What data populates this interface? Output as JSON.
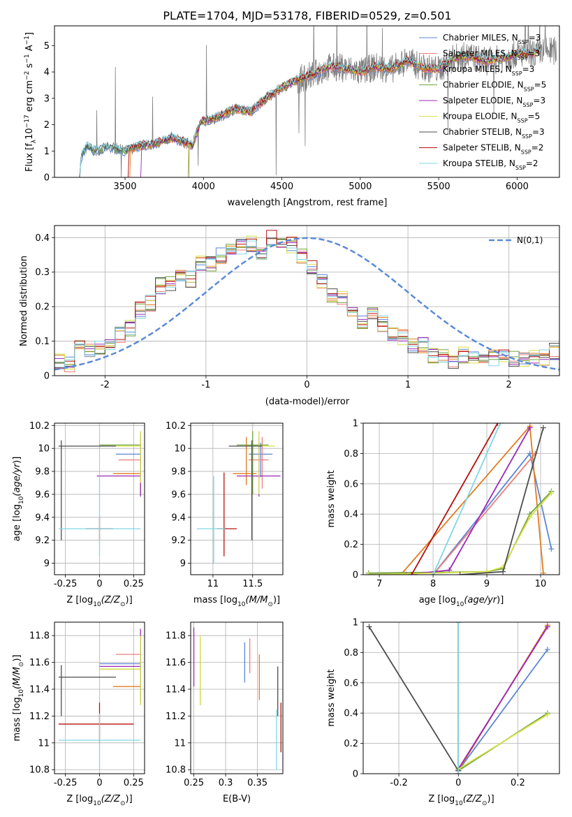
{
  "colors": {
    "Chabrier MILES": "#5b86d6",
    "Salpeter MILES": "#ee7d7d",
    "Kroupa MILES": "#e17b1f",
    "Chabrier ELODIE": "#6fa23a",
    "Salpeter ELODIE": "#9b28b6",
    "Kroupa ELODIE": "#d6e04a",
    "Chabrier STELIB": "#4d4d4d",
    "Salpeter STELIB": "#b3120e",
    "Kroupa STELIB": "#80d7e3",
    "gauss": "#5b8ad6"
  },
  "models": [
    {
      "lib": "Chabrier MILES",
      "nssp": "3"
    },
    {
      "lib": "Salpeter MILES",
      "nssp": "3"
    },
    {
      "lib": "Kroupa MILES",
      "nssp": "3"
    },
    {
      "lib": "Chabrier ELODIE",
      "nssp": "5"
    },
    {
      "lib": "Salpeter ELODIE",
      "nssp": "3"
    },
    {
      "lib": "Kroupa ELODIE",
      "nssp": "5"
    },
    {
      "lib": "Chabrier STELIB",
      "nssp": "3"
    },
    {
      "lib": "Salpeter STELIB",
      "nssp": "2"
    },
    {
      "lib": "Kroupa STELIB",
      "nssp": "2"
    }
  ],
  "chart_data": [
    {
      "id": "spectrum",
      "type": "line",
      "title": "PLATE=1704, MJD=53178, FIBERID=0529, z=0.501",
      "xlabel": "wavelength [Angstrom, rest frame]",
      "ylabel": "Flux [f_λ 10^-17 erg cm^-2 s^-1 A^-1]",
      "xlim": [
        3050,
        6270
      ],
      "ylim": [
        0,
        5.75
      ],
      "xticks": [
        3500,
        4000,
        4500,
        5000,
        5500,
        6000
      ],
      "yticks": [
        0,
        1,
        2,
        3,
        4,
        5
      ],
      "continuum": {
        "x": [
          3210,
          3220,
          3260,
          3300,
          3400,
          3500,
          3600,
          3700,
          3800,
          3870,
          3930,
          3980,
          4100,
          4200,
          4300,
          4400,
          4500,
          4600,
          4700,
          4800,
          4900,
          5000,
          5100,
          5200,
          5300,
          5400,
          5500,
          5600,
          5700,
          5800,
          5900,
          6000,
          6100,
          6150
        ],
        "y": [
          0,
          0.75,
          1.2,
          1.0,
          1.15,
          1.0,
          1.2,
          1.3,
          1.5,
          1.35,
          1.2,
          2.1,
          2.3,
          2.6,
          2.5,
          3.0,
          3.4,
          3.7,
          3.9,
          4.2,
          4.15,
          4.0,
          4.2,
          4.1,
          4.45,
          4.15,
          4.1,
          4.55,
          4.6,
          4.4,
          4.5,
          4.7,
          4.7,
          4.8
        ]
      }
    },
    {
      "id": "residuals",
      "type": "bar",
      "xlabel": "(data-model)/error",
      "ylabel": "Normed distribution",
      "xlim": [
        -2.5,
        2.5
      ],
      "ylim": [
        0,
        0.435
      ],
      "xticks": [
        -2,
        -1,
        0,
        1,
        2
      ],
      "yticks": [
        0.0,
        0.1,
        0.2,
        0.3,
        0.4
      ],
      "legend": "N(0,1)",
      "bin_edges_start": -2.5,
      "bin_width": 0.1,
      "histogram_profile": [
        0.04,
        0.03,
        0.035,
        0.04,
        0.08,
        0.06,
        0.07,
        0.06,
        0.08,
        0.1,
        0.09,
        0.11,
        0.12,
        0.12,
        0.14,
        0.2,
        0.19,
        0.22,
        0.21,
        0.24,
        0.26,
        0.29,
        0.27,
        0.33,
        0.3,
        0.32,
        0.28,
        0.35,
        0.33,
        0.36,
        0.32,
        0.37,
        0.35,
        0.39,
        0.36,
        0.38,
        0.37,
        0.39,
        0.38,
        0.395,
        0.36,
        0.38,
        0.4,
        0.35,
        0.39,
        0.37,
        0.38,
        0.39,
        0.35,
        0.33,
        0.32,
        0.3,
        0.27,
        0.26,
        0.23,
        0.21,
        0.22,
        0.2,
        0.18,
        0.19,
        0.16,
        0.2,
        0.18,
        0.19,
        0.15,
        0.16,
        0.12,
        0.1,
        0.11,
        0.12,
        0.09,
        0.08,
        0.09,
        0.07,
        0.06,
        0.05,
        0.06,
        0.05,
        0.04,
        0.05,
        0.06,
        0.04,
        0.05,
        0.04,
        0.05,
        0.06,
        0.05,
        0.06,
        0.05,
        0.06,
        0.05,
        0.04,
        0.05,
        0.06,
        0.05,
        0.06,
        0.05,
        0.06,
        0.07,
        0.06
      ]
    },
    {
      "id": "age-vs-Z",
      "type": "scatter",
      "xlabel": "Z [log10(Z/Z⊙)]",
      "ylabel": "age  [log10(age/yr)]",
      "xlim": [
        -0.33,
        0.33
      ],
      "ylim": [
        8.9,
        10.22
      ],
      "xticks": [
        -0.25,
        0.0,
        0.25
      ],
      "yticks": [
        9.0,
        9.2,
        9.4,
        9.6,
        9.8,
        10.0,
        10.2
      ],
      "points": [
        {
          "series": "Chabrier MILES",
          "x": 0.3,
          "y": 9.95,
          "xe": [
            0.12,
            0.3
          ],
          "ye": [
            9.7,
            10.1
          ]
        },
        {
          "series": "Salpeter MILES",
          "x": 0.3,
          "y": 9.9,
          "xe": [
            0.14,
            0.3
          ],
          "ye": [
            9.6,
            10.15
          ]
        },
        {
          "series": "Kroupa MILES",
          "x": 0.3,
          "y": 9.78,
          "xe": [
            0.1,
            0.3
          ],
          "ye": [
            9.6,
            10.1
          ]
        },
        {
          "series": "Chabrier ELODIE",
          "x": 0.3,
          "y": 10.03,
          "xe": [
            0.0,
            0.3
          ],
          "ye": [
            9.6,
            10.15
          ]
        },
        {
          "series": "Salpeter ELODIE",
          "x": 0.3,
          "y": 9.76,
          "xe": [
            -0.02,
            0.3
          ],
          "ye": [
            9.58,
            10.1
          ]
        },
        {
          "series": "Kroupa ELODIE",
          "x": 0.3,
          "y": 10.02,
          "xe": [
            0.0,
            0.3
          ],
          "ye": [
            9.7,
            10.15
          ]
        },
        {
          "series": "Chabrier STELIB",
          "x": -0.28,
          "y": 10.02,
          "xe": [
            -0.3,
            0.12
          ],
          "ye": [
            9.2,
            10.07
          ]
        },
        {
          "series": "Salpeter STELIB",
          "x": 0.0,
          "y": 9.3,
          "xe": [
            -0.1,
            0.1
          ],
          "ye": [
            9.2,
            9.4
          ]
        },
        {
          "series": "Kroupa STELIB",
          "x": 0.0,
          "y": 9.3,
          "xe": [
            -0.3,
            0.3
          ],
          "ye": [
            9.06,
            9.76
          ]
        }
      ]
    },
    {
      "id": "age-vs-mass",
      "type": "scatter",
      "xlabel": "mass [log10(M/M⊙)]",
      "ylabel": "",
      "xlim": [
        10.72,
        11.88
      ],
      "ylim": [
        8.9,
        10.22
      ],
      "xticks": [
        11.0,
        11.5
      ],
      "yticks": [
        9.0,
        9.2,
        9.4,
        9.6,
        9.8,
        10.0,
        10.2
      ],
      "points": [
        {
          "series": "Chabrier MILES",
          "x": 11.6,
          "y": 9.95,
          "xe": [
            11.45,
            11.75
          ],
          "ye": [
            9.75,
            10.05
          ]
        },
        {
          "series": "Salpeter MILES",
          "x": 11.62,
          "y": 9.9,
          "xe": [
            11.45,
            11.7
          ],
          "ye": [
            9.65,
            10.1
          ]
        },
        {
          "series": "Kroupa MILES",
          "x": 11.42,
          "y": 9.78,
          "xe": [
            11.25,
            11.55
          ],
          "ye": [
            9.68,
            10.1
          ]
        },
        {
          "series": "Chabrier ELODIE",
          "x": 11.5,
          "y": 10.03,
          "xe": [
            11.3,
            11.7
          ],
          "ye": [
            9.6,
            10.15
          ]
        },
        {
          "series": "Salpeter ELODIE",
          "x": 11.58,
          "y": 9.76,
          "xe": [
            11.3,
            11.85
          ],
          "ye": [
            9.58,
            10.1
          ]
        },
        {
          "series": "Kroupa ELODIE",
          "x": 11.58,
          "y": 10.02,
          "xe": [
            11.4,
            11.78
          ],
          "ye": [
            9.6,
            10.15
          ]
        },
        {
          "series": "Chabrier STELIB",
          "x": 11.49,
          "y": 10.02,
          "xe": [
            11.2,
            11.62
          ],
          "ye": [
            9.2,
            10.07
          ]
        },
        {
          "series": "Salpeter STELIB",
          "x": 11.14,
          "y": 9.3,
          "xe": [
            11.05,
            11.3
          ],
          "ye": [
            9.06,
            9.79
          ]
        },
        {
          "series": "Kroupa STELIB",
          "x": 11.01,
          "y": 9.3,
          "xe": [
            10.8,
            11.15
          ],
          "ye": [
            9.0,
            9.76
          ]
        }
      ]
    },
    {
      "id": "weight-vs-age",
      "type": "line",
      "xlabel": "age  [log10(age/yr)]",
      "ylabel": "mass weight",
      "xlim": [
        6.7,
        10.35
      ],
      "ylim": [
        0,
        1.0
      ],
      "xticks": [
        7,
        8,
        9,
        10
      ],
      "yticks": [
        0.0,
        0.2,
        0.4,
        0.6,
        0.8,
        1.0
      ],
      "series": [
        {
          "name": "Chabrier MILES",
          "x": [
            8.0,
            9.8,
            10.2
          ],
          "y": [
            0.0,
            0.8,
            0.17
          ]
        },
        {
          "name": "Salpeter MILES",
          "x": [
            8.0,
            9.9
          ],
          "y": [
            0.0,
            0.8
          ]
        },
        {
          "name": "Kroupa MILES",
          "x": [
            7.4,
            9.8,
            10.05
          ],
          "y": [
            0.0,
            0.98,
            0.01
          ]
        },
        {
          "name": "Chabrier ELODIE",
          "x": [
            6.8,
            9.0,
            9.3,
            9.8,
            10.2
          ],
          "y": [
            0.01,
            0.02,
            0.04,
            0.4,
            0.55
          ]
        },
        {
          "name": "Salpeter ELODIE",
          "x": [
            7.5,
            8.3,
            9.8
          ],
          "y": [
            0.0,
            0.03,
            0.97
          ]
        },
        {
          "name": "Kroupa ELODIE",
          "x": [
            6.8,
            9.0,
            9.3,
            9.8,
            10.2
          ],
          "y": [
            0.0,
            0.02,
            0.05,
            0.38,
            0.54
          ]
        },
        {
          "name": "Chabrier STELIB",
          "x": [
            8.5,
            9.3,
            10.05
          ],
          "y": [
            0.0,
            0.02,
            0.97
          ]
        },
        {
          "name": "Salpeter STELIB",
          "x": [
            7.6,
            9.2
          ],
          "y": [
            0.0,
            1.0
          ]
        },
        {
          "name": "Kroupa STELIB",
          "x": [
            8.0,
            9.25
          ],
          "y": [
            0.0,
            1.0
          ]
        }
      ]
    },
    {
      "id": "mass-vs-Z",
      "type": "scatter",
      "xlabel": "Z [log10(Z/Z⊙)]",
      "ylabel": "mass [log10(M/M⊙)]",
      "xlim": [
        -0.33,
        0.33
      ],
      "ylim": [
        10.77,
        11.9
      ],
      "xticks": [
        -0.25,
        0.0,
        0.25
      ],
      "yticks": [
        10.8,
        11.0,
        11.2,
        11.4,
        11.6,
        11.8
      ],
      "points": [
        {
          "series": "Chabrier MILES",
          "x": 0.3,
          "y": 11.59,
          "xe": [
            0.0,
            0.3
          ],
          "ye": [
            11.45,
            11.75
          ]
        },
        {
          "series": "Salpeter MILES",
          "x": 0.3,
          "y": 11.66,
          "xe": [
            0.12,
            0.3
          ],
          "ye": [
            11.5,
            11.8
          ]
        },
        {
          "series": "Kroupa MILES",
          "x": 0.3,
          "y": 11.42,
          "xe": [
            0.1,
            0.3
          ],
          "ye": [
            11.3,
            11.55
          ]
        },
        {
          "series": "Chabrier ELODIE",
          "x": 0.3,
          "y": 11.55,
          "xe": [
            0.0,
            0.3
          ],
          "ye": [
            11.3,
            11.7
          ]
        },
        {
          "series": "Salpeter ELODIE",
          "x": 0.3,
          "y": 11.57,
          "xe": [
            0.0,
            0.3
          ],
          "ye": [
            11.3,
            11.85
          ]
        },
        {
          "series": "Kroupa ELODIE",
          "x": 0.3,
          "y": 11.55,
          "xe": [
            0.0,
            0.3
          ],
          "ye": [
            11.28,
            11.8
          ]
        },
        {
          "series": "Chabrier STELIB",
          "x": -0.28,
          "y": 11.49,
          "xe": [
            -0.3,
            0.12
          ],
          "ye": [
            11.2,
            11.58
          ]
        },
        {
          "series": "Salpeter STELIB",
          "x": 0.0,
          "y": 11.14,
          "xe": [
            -0.3,
            0.25
          ],
          "ye": [
            11.0,
            11.3
          ]
        },
        {
          "series": "Kroupa STELIB",
          "x": 0.0,
          "y": 11.02,
          "xe": [
            -0.3,
            0.3
          ],
          "ye": [
            10.8,
            11.22
          ]
        }
      ]
    },
    {
      "id": "mass-vs-ebv",
      "type": "scatter",
      "xlabel": "E(B-V)",
      "ylabel": "",
      "xlim": [
        0.245,
        0.39
      ],
      "ylim": [
        10.77,
        11.9
      ],
      "xticks": [
        0.25,
        0.3,
        0.35
      ],
      "yticks": [
        10.8,
        11.0,
        11.2,
        11.4,
        11.6,
        11.8
      ],
      "points": [
        {
          "series": "Chabrier MILES",
          "x": 0.33,
          "y": 11.59,
          "ye": [
            11.45,
            11.75
          ]
        },
        {
          "series": "Salpeter MILES",
          "x": 0.338,
          "y": 11.66,
          "ye": [
            11.52,
            11.78
          ]
        },
        {
          "series": "Kroupa MILES",
          "x": 0.353,
          "y": 11.48,
          "ye": [
            11.32,
            11.66
          ]
        },
        {
          "series": "Chabrier ELODIE",
          "x": 0.26,
          "y": 11.55,
          "ye": [
            11.28,
            11.78
          ]
        },
        {
          "series": "Salpeter ELODIE",
          "x": 0.25,
          "y": 11.57,
          "ye": [
            11.42,
            11.86
          ]
        },
        {
          "series": "Kroupa ELODIE",
          "x": 0.26,
          "y": 11.55,
          "ye": [
            11.28,
            11.8
          ]
        },
        {
          "series": "Chabrier STELIB",
          "x": 0.382,
          "y": 11.38,
          "ye": [
            11.2,
            11.57
          ]
        },
        {
          "series": "Salpeter STELIB",
          "x": 0.387,
          "y": 11.1,
          "ye": [
            10.93,
            11.3
          ]
        },
        {
          "series": "Kroupa STELIB",
          "x": 0.38,
          "y": 11.0,
          "ye": [
            10.8,
            11.25
          ]
        }
      ]
    },
    {
      "id": "weight-vs-Z",
      "type": "line",
      "xlabel": "Z [log10(Z/Z⊙)]",
      "ylabel": "mass weight",
      "xlim": [
        -0.32,
        0.34
      ],
      "ylim": [
        0,
        1.0
      ],
      "xticks": [
        -0.2,
        0.0,
        0.2
      ],
      "yticks": [
        0.0,
        0.2,
        0.4,
        0.6,
        0.8,
        1.0
      ],
      "series": [
        {
          "name": "Chabrier MILES",
          "x": [
            0.0,
            0.3
          ],
          "y": [
            0.02,
            0.82
          ]
        },
        {
          "name": "Salpeter MILES",
          "x": [
            0.0,
            0.3
          ],
          "y": [
            0.03,
            0.97
          ]
        },
        {
          "name": "Kroupa MILES",
          "x": [
            0.0,
            0.3
          ],
          "y": [
            0.02,
            0.98
          ]
        },
        {
          "name": "Chabrier ELODIE",
          "x": [
            0.0,
            0.3
          ],
          "y": [
            0.02,
            0.4
          ]
        },
        {
          "name": "Salpeter ELODIE",
          "x": [
            0.0,
            0.3
          ],
          "y": [
            0.03,
            0.97
          ]
        },
        {
          "name": "Kroupa ELODIE",
          "x": [
            0.0,
            0.3
          ],
          "y": [
            0.03,
            0.39
          ]
        },
        {
          "name": "Chabrier STELIB",
          "x": [
            -0.3,
            0.0
          ],
          "y": [
            0.97,
            0.02
          ]
        },
        {
          "name": "Salpeter STELIB",
          "x": [
            0.0,
            0.0
          ],
          "y": [
            0.0,
            1.0
          ]
        },
        {
          "name": "Kroupa STELIB",
          "x": [
            0.0,
            0.0
          ],
          "y": [
            0.0,
            1.0
          ]
        }
      ]
    }
  ]
}
